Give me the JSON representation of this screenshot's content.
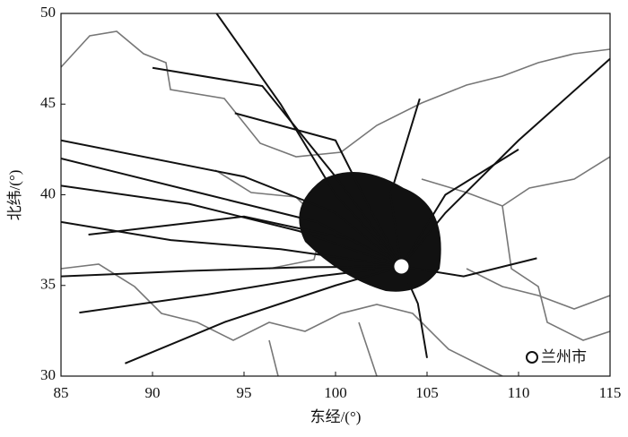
{
  "chart_data": {
    "type": "trajectory",
    "xlabel": "东经/(°)",
    "ylabel": "北纬/(°)",
    "xlim": [
      85,
      115
    ],
    "ylim": [
      30,
      50
    ],
    "xticks": [
      85,
      90,
      95,
      100,
      105,
      110,
      115
    ],
    "yticks": [
      30,
      35,
      40,
      45,
      50
    ],
    "color": "#111111",
    "series": [
      {
        "x": [
          85,
          95,
          100,
          103.6
        ],
        "values": [
          43,
          41,
          39,
          36.05
        ]
      },
      {
        "x": [
          85,
          92,
          98,
          103.6
        ],
        "values": [
          40.5,
          39.5,
          38,
          36.05
        ]
      },
      {
        "x": [
          85,
          91,
          97,
          103.6
        ],
        "values": [
          38.5,
          37.5,
          37,
          36.05
        ]
      },
      {
        "x": [
          85,
          92,
          98,
          103.6
        ],
        "values": [
          35.5,
          35.8,
          36,
          36.05
        ]
      },
      {
        "x": [
          86,
          93,
          99,
          103.6
        ],
        "values": [
          33.5,
          34.5,
          35.5,
          36.05
        ]
      },
      {
        "x": [
          88.5,
          94,
          100,
          103.6
        ],
        "values": [
          30.7,
          33,
          35,
          36.05
        ]
      },
      {
        "x": [
          93.5,
          97,
          100,
          103.6
        ],
        "values": [
          50,
          45,
          40,
          36.05
        ]
      },
      {
        "x": [
          90,
          96,
          100,
          103.6
        ],
        "values": [
          47,
          46,
          41,
          36.05
        ]
      },
      {
        "x": [
          94.5,
          100,
          102,
          103.6
        ],
        "values": [
          44.5,
          43,
          39,
          36.05
        ]
      },
      {
        "x": [
          115,
          110,
          106,
          103.6
        ],
        "values": [
          47.5,
          43,
          39,
          36.05
        ]
      },
      {
        "x": [
          110,
          106,
          103.6
        ],
        "values": [
          42.5,
          40,
          36.05
        ]
      },
      {
        "x": [
          111,
          107,
          103.6
        ],
        "values": [
          36.5,
          35.5,
          36.05
        ]
      },
      {
        "x": [
          105,
          104.5,
          103.6
        ],
        "values": [
          31,
          34,
          36.05
        ]
      },
      {
        "x": [
          86.5,
          95,
          101,
          103.6
        ],
        "values": [
          37.8,
          38.8,
          37.5,
          36.05
        ]
      },
      {
        "x": [
          104.6,
          103,
          103.6
        ],
        "values": [
          45.3,
          40,
          36.05
        ]
      },
      {
        "x": [
          85,
          93,
          99,
          103.6
        ],
        "values": [
          42,
          40,
          38.5,
          36.05
        ]
      }
    ],
    "point": {
      "name": "兰州市",
      "x": 103.6,
      "y": 36.05,
      "color": "#ffffff"
    }
  }
}
